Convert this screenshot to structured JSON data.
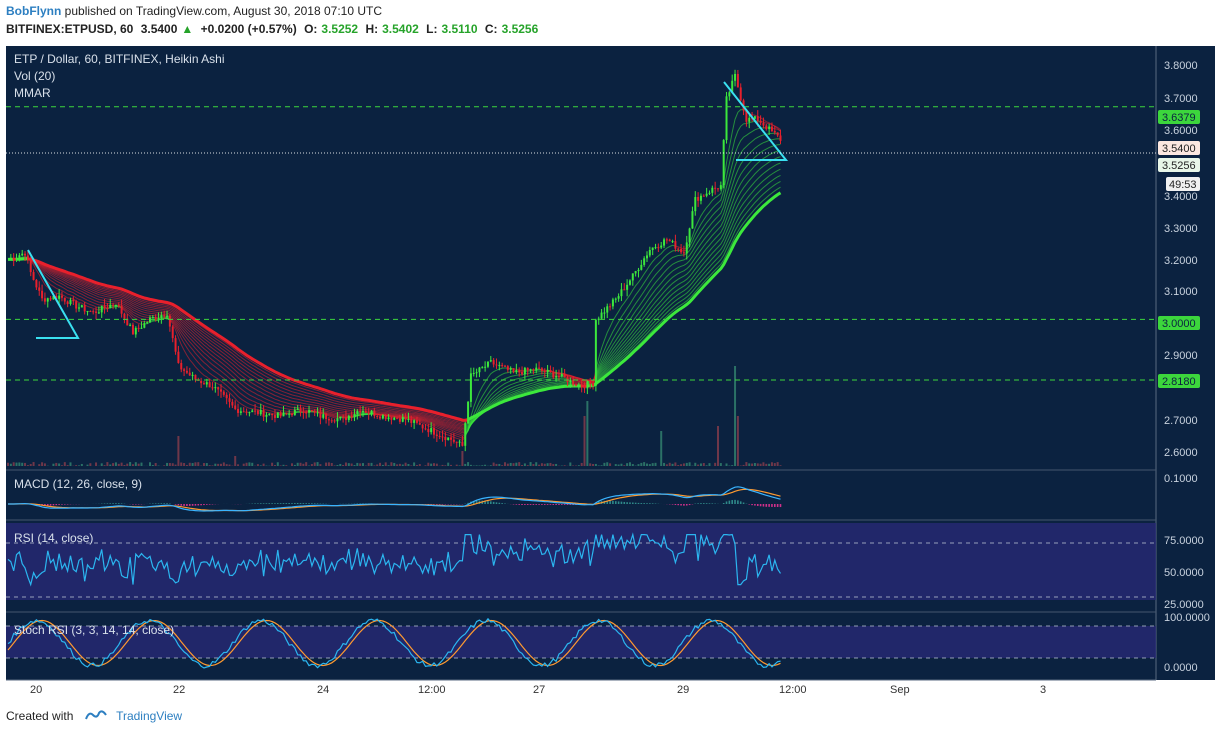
{
  "header": {
    "author": "BobFlynn",
    "published": "published on TradingView.com, August 30, 2018 07:10 UTC",
    "symbol": "BITFINEX:ETPUSD, 60",
    "last": "3.5400",
    "change": "+0.0200 (+0.57%)",
    "o_label": "O:",
    "o": "3.5252",
    "h_label": "H:",
    "h": "3.5402",
    "l_label": "L:",
    "l": "3.5110",
    "c_label": "C:",
    "c": "3.5256"
  },
  "footer": {
    "created_with": "Created with",
    "brand": "TradingView"
  },
  "colors": {
    "background": "#0b2240",
    "indicator_bg": "#2a2a78",
    "bull": "#3ce83c",
    "bear": "#e8202c",
    "level_line": "#3cd63c",
    "trend_line": "#3ae0f0",
    "macd_line": "#3ab4ff",
    "signal_line": "#ff9a30",
    "rsi_line": "#2bb6f0",
    "stoch_k": "#2bb6f0",
    "stoch_d": "#ff9a30"
  },
  "chart_data": {
    "type": "candlestick",
    "title": "ETP / Dollar, 60, BITFINEX, Heikin Ashi",
    "overlays": [
      "Vol (20)",
      "MMAR"
    ],
    "ylim": [
      2.56,
      3.82
    ],
    "y_ticks": [
      "3.8000",
      "3.7000",
      "3.6000",
      "3.4000",
      "3.3000",
      "3.2000",
      "3.1000",
      "2.9000",
      "2.7000",
      "2.6000"
    ],
    "x_ticks": [
      "20",
      "22",
      "24",
      "12:00",
      "27",
      "29",
      "12:00",
      "Sep",
      "3"
    ],
    "horizontal_levels": [
      3.6379,
      3.0,
      2.818
    ],
    "price_labels": [
      {
        "text": "3.6379",
        "value": 3.6379,
        "kind": "level"
      },
      {
        "text": "3.5400",
        "value": 3.54,
        "kind": "last"
      },
      {
        "text": "3.5256",
        "value": 3.5256,
        "kind": "close"
      },
      {
        "text": "3.0000",
        "value": 3.0,
        "kind": "level"
      },
      {
        "text": "2.8180",
        "value": 2.818,
        "kind": "level"
      }
    ],
    "countdown": "49:53",
    "price_path": [
      [
        0,
        3.18
      ],
      [
        6,
        3.2
      ],
      [
        8,
        3.14
      ],
      [
        12,
        3.06
      ],
      [
        18,
        3.07
      ],
      [
        24,
        3.04
      ],
      [
        30,
        3.02
      ],
      [
        38,
        3.05
      ],
      [
        44,
        2.96
      ],
      [
        50,
        3.0
      ],
      [
        56,
        3.02
      ],
      [
        60,
        2.86
      ],
      [
        66,
        2.82
      ],
      [
        72,
        2.8
      ],
      [
        80,
        2.73
      ],
      [
        88,
        2.72
      ],
      [
        96,
        2.71
      ],
      [
        104,
        2.73
      ],
      [
        110,
        2.71
      ],
      [
        118,
        2.7
      ],
      [
        124,
        2.73
      ],
      [
        132,
        2.71
      ],
      [
        140,
        2.7
      ],
      [
        148,
        2.67
      ],
      [
        156,
        2.64
      ],
      [
        160,
        2.62
      ],
      [
        163,
        2.83
      ],
      [
        170,
        2.87
      ],
      [
        178,
        2.84
      ],
      [
        186,
        2.85
      ],
      [
        194,
        2.83
      ],
      [
        202,
        2.8
      ],
      [
        206,
        2.81
      ],
      [
        207,
        3.0
      ],
      [
        214,
        3.06
      ],
      [
        220,
        3.13
      ],
      [
        226,
        3.21
      ],
      [
        232,
        3.24
      ],
      [
        238,
        3.2
      ],
      [
        242,
        3.36
      ],
      [
        248,
        3.39
      ],
      [
        251,
        3.4
      ],
      [
        253,
        3.66
      ],
      [
        256,
        3.73
      ],
      [
        260,
        3.6
      ],
      [
        264,
        3.6
      ],
      [
        268,
        3.57
      ],
      [
        272,
        3.54
      ]
    ],
    "volume_spikes": [
      [
        60,
        0.3
      ],
      [
        80,
        0.1
      ],
      [
        160,
        0.15
      ],
      [
        203,
        0.5
      ],
      [
        204,
        0.65
      ],
      [
        230,
        0.35
      ],
      [
        250,
        0.4
      ],
      [
        256,
        1.0
      ],
      [
        257,
        0.5
      ]
    ],
    "macd": {
      "label": "MACD (12, 26, close, 9)",
      "y_ticks": [
        "0.1000"
      ]
    },
    "rsi": {
      "label": "RSI (14, close)",
      "y_ticks": [
        "75.0000",
        "50.0000",
        "25.0000"
      ],
      "levels": [
        70,
        30
      ]
    },
    "stoch_rsi": {
      "label": "Stoch RSI (3, 3, 14, 14, close)",
      "y_ticks": [
        "100.0000",
        "0.0000"
      ],
      "levels": [
        80,
        20
      ]
    }
  }
}
